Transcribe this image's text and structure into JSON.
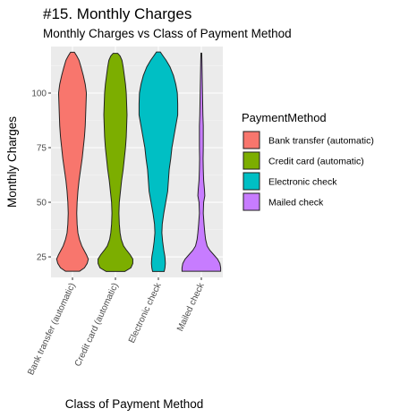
{
  "chart_data": {
    "type": "violin",
    "title": "#15. Monthly Charges",
    "subtitle": "Monthly Charges vs Class of Payment Method",
    "xlabel": "Class of Payment Method",
    "ylabel": "Monthly Charges",
    "categories": [
      "Bank transfer (automatic)",
      "Credit card (automatic)",
      "Electronic check",
      "Mailed check"
    ],
    "yticks": [
      25,
      50,
      75,
      100
    ],
    "ylim": [
      15.6,
      121.3
    ],
    "grid": true,
    "legend_title": "PaymentMethod",
    "legend_position": "right",
    "colors": [
      "#F8766D",
      "#7CAE00",
      "#00BFC4",
      "#C77CFF"
    ],
    "series": [
      {
        "name": "Bank transfer (automatic)",
        "y_min": 18.4,
        "y_max": 118.7,
        "density_profile": [
          [
            18.4,
            0.36
          ],
          [
            20,
            0.62
          ],
          [
            22,
            0.76
          ],
          [
            24,
            0.82
          ],
          [
            26,
            0.72
          ],
          [
            28,
            0.6
          ],
          [
            30,
            0.48
          ],
          [
            33,
            0.36
          ],
          [
            36,
            0.28
          ],
          [
            40,
            0.24
          ],
          [
            45,
            0.22
          ],
          [
            50,
            0.24
          ],
          [
            55,
            0.28
          ],
          [
            60,
            0.34
          ],
          [
            65,
            0.42
          ],
          [
            70,
            0.5
          ],
          [
            75,
            0.56
          ],
          [
            80,
            0.62
          ],
          [
            85,
            0.66
          ],
          [
            90,
            0.68
          ],
          [
            95,
            0.7
          ],
          [
            100,
            0.72
          ],
          [
            104,
            0.66
          ],
          [
            108,
            0.56
          ],
          [
            112,
            0.44
          ],
          [
            115,
            0.34
          ],
          [
            117,
            0.22
          ],
          [
            118.7,
            0.1
          ]
        ]
      },
      {
        "name": "Credit card (automatic)",
        "y_min": 18.3,
        "y_max": 118.2,
        "density_profile": [
          [
            18.3,
            0.48
          ],
          [
            20,
            0.8
          ],
          [
            22,
            0.9
          ],
          [
            24,
            0.9
          ],
          [
            26,
            0.76
          ],
          [
            28,
            0.58
          ],
          [
            30,
            0.42
          ],
          [
            33,
            0.3
          ],
          [
            36,
            0.24
          ],
          [
            40,
            0.2
          ],
          [
            45,
            0.18
          ],
          [
            50,
            0.2
          ],
          [
            55,
            0.26
          ],
          [
            60,
            0.32
          ],
          [
            65,
            0.4
          ],
          [
            70,
            0.46
          ],
          [
            75,
            0.52
          ],
          [
            80,
            0.56
          ],
          [
            85,
            0.58
          ],
          [
            90,
            0.6
          ],
          [
            95,
            0.58
          ],
          [
            100,
            0.56
          ],
          [
            104,
            0.52
          ],
          [
            108,
            0.46
          ],
          [
            112,
            0.4
          ],
          [
            115,
            0.34
          ],
          [
            117,
            0.24
          ],
          [
            118.2,
            0.12
          ]
        ]
      },
      {
        "name": "Electronic check",
        "y_min": 18.3,
        "y_max": 118.8,
        "density_profile": [
          [
            18.3,
            0.3
          ],
          [
            20,
            0.34
          ],
          [
            22,
            0.36
          ],
          [
            25,
            0.34
          ],
          [
            28,
            0.28
          ],
          [
            32,
            0.22
          ],
          [
            36,
            0.18
          ],
          [
            40,
            0.2
          ],
          [
            45,
            0.28
          ],
          [
            50,
            0.38
          ],
          [
            55,
            0.48
          ],
          [
            60,
            0.52
          ],
          [
            65,
            0.56
          ],
          [
            70,
            0.64
          ],
          [
            75,
            0.7
          ],
          [
            80,
            0.8
          ],
          [
            85,
            0.9
          ],
          [
            90,
            1.0
          ],
          [
            95,
            1.0
          ],
          [
            100,
            0.98
          ],
          [
            104,
            0.9
          ],
          [
            108,
            0.78
          ],
          [
            112,
            0.6
          ],
          [
            115,
            0.4
          ],
          [
            117,
            0.24
          ],
          [
            118.8,
            0.1
          ]
        ]
      },
      {
        "name": "Mailed check",
        "y_min": 18.4,
        "y_max": 118.3,
        "density_profile": [
          [
            18.4,
            1.0
          ],
          [
            20,
            1.0
          ],
          [
            22,
            0.96
          ],
          [
            24,
            0.84
          ],
          [
            26,
            0.64
          ],
          [
            28,
            0.44
          ],
          [
            30,
            0.3
          ],
          [
            33,
            0.22
          ],
          [
            36,
            0.18
          ],
          [
            40,
            0.14
          ],
          [
            45,
            0.1
          ],
          [
            50,
            0.12
          ],
          [
            53,
            0.18
          ],
          [
            56,
            0.16
          ],
          [
            60,
            0.12
          ],
          [
            65,
            0.1
          ],
          [
            70,
            0.09
          ],
          [
            75,
            0.1
          ],
          [
            80,
            0.1
          ],
          [
            85,
            0.1
          ],
          [
            90,
            0.08
          ],
          [
            95,
            0.07
          ],
          [
            100,
            0.06
          ],
          [
            105,
            0.05
          ],
          [
            110,
            0.04
          ],
          [
            115,
            0.03
          ],
          [
            118.3,
            0.02
          ]
        ]
      }
    ]
  }
}
